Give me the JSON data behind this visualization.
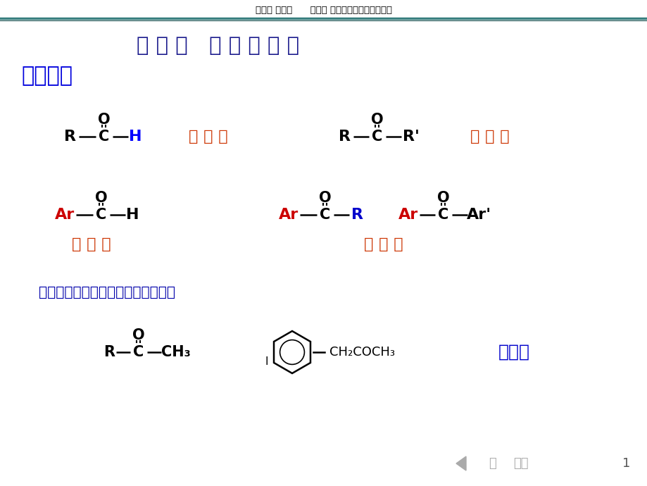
{
  "bg_color": "#ffffff",
  "header_text": "第九章 醒和酮      第一节 分类和命名（一、分类）",
  "header_color": "#000000",
  "header_line_color1": "#3a8080",
  "header_line_color2": "#1a5050",
  "title_text": "第 一 节   分 类 和 命 名",
  "title_color": "#1a1a8c",
  "section_text": "一、分类",
  "section_color": "#0000dd",
  "label_zhifang_aldehyde": "脂 肪 醒",
  "label_zhifang_ketone": "脂 肪 酮",
  "label_fangxiang_aldehyde": "芳 香 醒",
  "label_fangxiang_ketone": "芳 香 酮",
  "label_color_orange": "#cc3300",
  "note_text": "芳香醒酮的羰基直接连在芳香环上。",
  "note_color": "#0000aa",
  "jiaji_color": "#2222cc",
  "footer_page": "1",
  "footer_color": "#aaaaaa",
  "red_color": "#cc0000",
  "blue_color": "#0000cc",
  "black_color": "#000000"
}
